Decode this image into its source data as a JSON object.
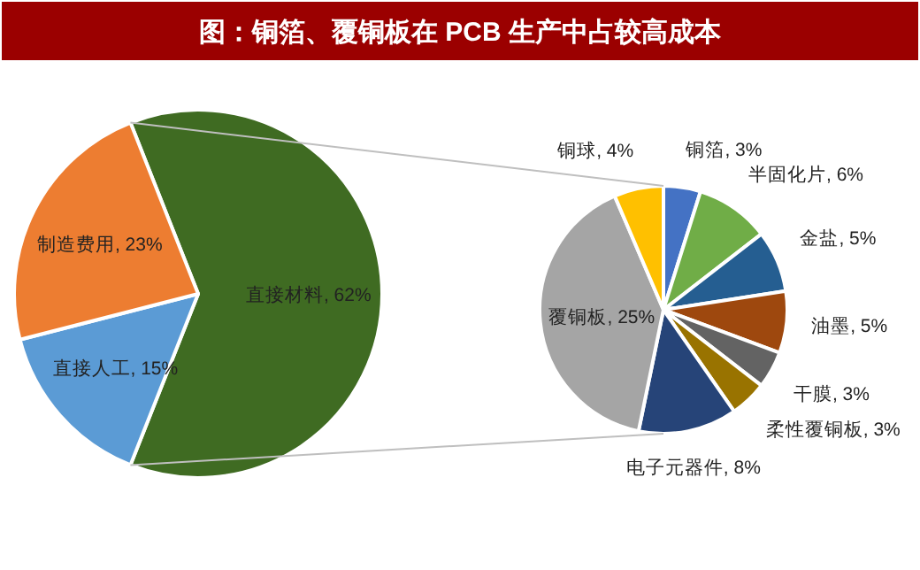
{
  "chart_data": [
    {
      "type": "pie",
      "title": "图：铜箔、覆铜板在 PCB 生产中占较高成本",
      "categories": [
        "直接材料",
        "直接人工",
        "制造费用"
      ],
      "values": [
        62,
        15,
        23
      ],
      "value_labels": [
        "62%",
        "15%",
        "23%"
      ],
      "colors": [
        "#3f6b22",
        "#5b9bd5",
        "#ed7d31"
      ]
    },
    {
      "type": "pie",
      "categories": [
        "铜箔",
        "半固化片",
        "金盐",
        "油墨",
        "干膜",
        "柔性覆铜板",
        "电子元器件",
        "覆铜板",
        "铜球"
      ],
      "values": [
        3,
        6,
        5,
        5,
        3,
        3,
        8,
        25,
        4
      ],
      "value_labels": [
        "3%",
        "6%",
        "5%",
        "5%",
        "3%",
        "3%",
        "8%",
        "25%",
        "4%"
      ],
      "colors": [
        "#4472c4",
        "#70ad47",
        "#255e91",
        "#9e480e",
        "#636363",
        "#997300",
        "#264478",
        "#a5a5a5",
        "#ffc000"
      ]
    }
  ]
}
